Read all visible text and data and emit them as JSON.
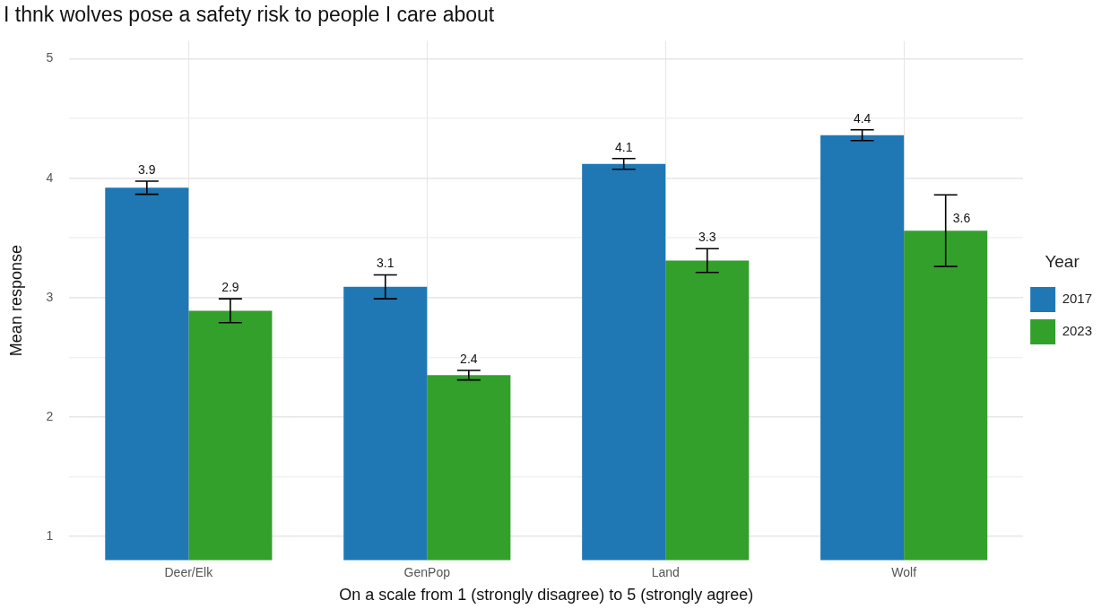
{
  "chart_data": {
    "type": "bar",
    "title": "I thnk wolves pose a safety risk to people I care about",
    "xlabel": "On a scale from 1 (strongly disagree) to 5 (strongly agree)",
    "ylabel": "Mean response",
    "legend_title": "Year",
    "categories": [
      "Deer/Elk",
      "GenPop",
      "Land",
      "Wolf"
    ],
    "series": [
      {
        "name": "2017",
        "color": "#1f78b4",
        "values": [
          3.92,
          3.09,
          4.12,
          4.36
        ],
        "errors": [
          0.055,
          0.1,
          0.045,
          0.045
        ],
        "value_labels": [
          "3.9",
          "3.1",
          "4.1",
          "4.4"
        ]
      },
      {
        "name": "2023",
        "color": "#33a02c",
        "values": [
          2.89,
          2.35,
          3.31,
          3.56
        ],
        "errors": [
          0.1,
          0.04,
          0.1,
          0.3
        ],
        "value_labels": [
          "2.9",
          "2.4",
          "3.3",
          "3.6"
        ]
      }
    ],
    "ylim": [
      0.8,
      5.15
    ],
    "yticks": [
      1,
      {
        "value": 1.5,
        "label": null
      },
      2,
      {
        "value": 2.5,
        "label": null
      },
      3,
      {
        "value": 3.5,
        "label": null
      },
      4,
      {
        "value": 4.5,
        "label": null
      },
      5
    ],
    "grid": true,
    "legend": "right"
  }
}
